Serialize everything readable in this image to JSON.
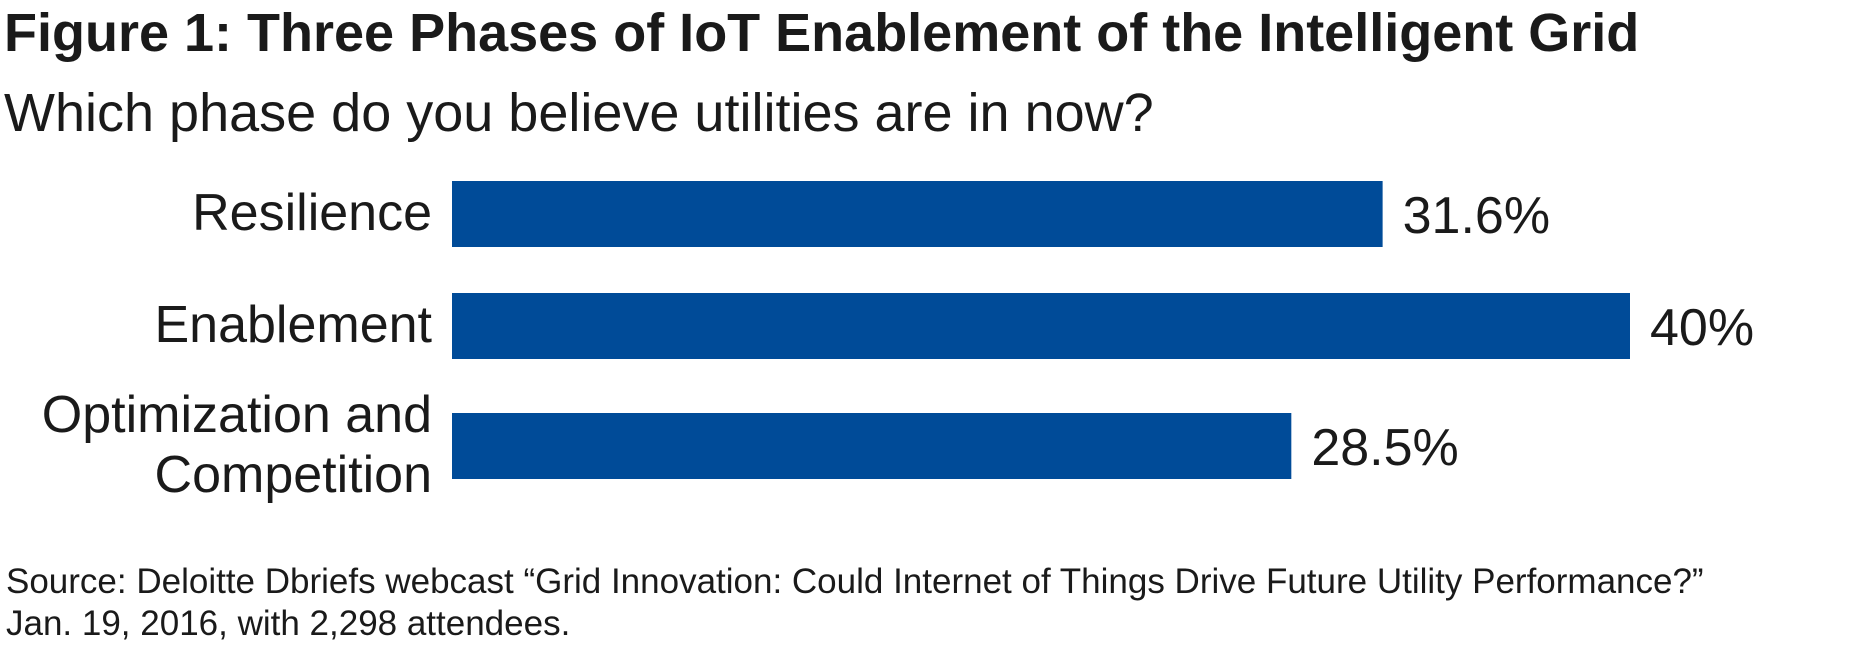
{
  "chart_data": {
    "type": "bar",
    "orientation": "horizontal",
    "title": "Figure 1: Three Phases of IoT Enablement of the Intelligent Grid",
    "subtitle": "Which phase do you believe utilities are in now?",
    "categories": [
      "Resilience",
      "Enablement",
      "Optimization and Competition"
    ],
    "values": [
      31.6,
      40,
      28.5
    ],
    "value_labels": [
      "31.6%",
      "40%",
      "28.5%"
    ],
    "color": "#004b98",
    "source": [
      "Source: Deloitte Dbriefs webcast “Grid Innovation: Could Internet of Things Drive Future Utility Performance?”",
      "Jan. 19, 2016, with 2,298 attendees."
    ]
  }
}
